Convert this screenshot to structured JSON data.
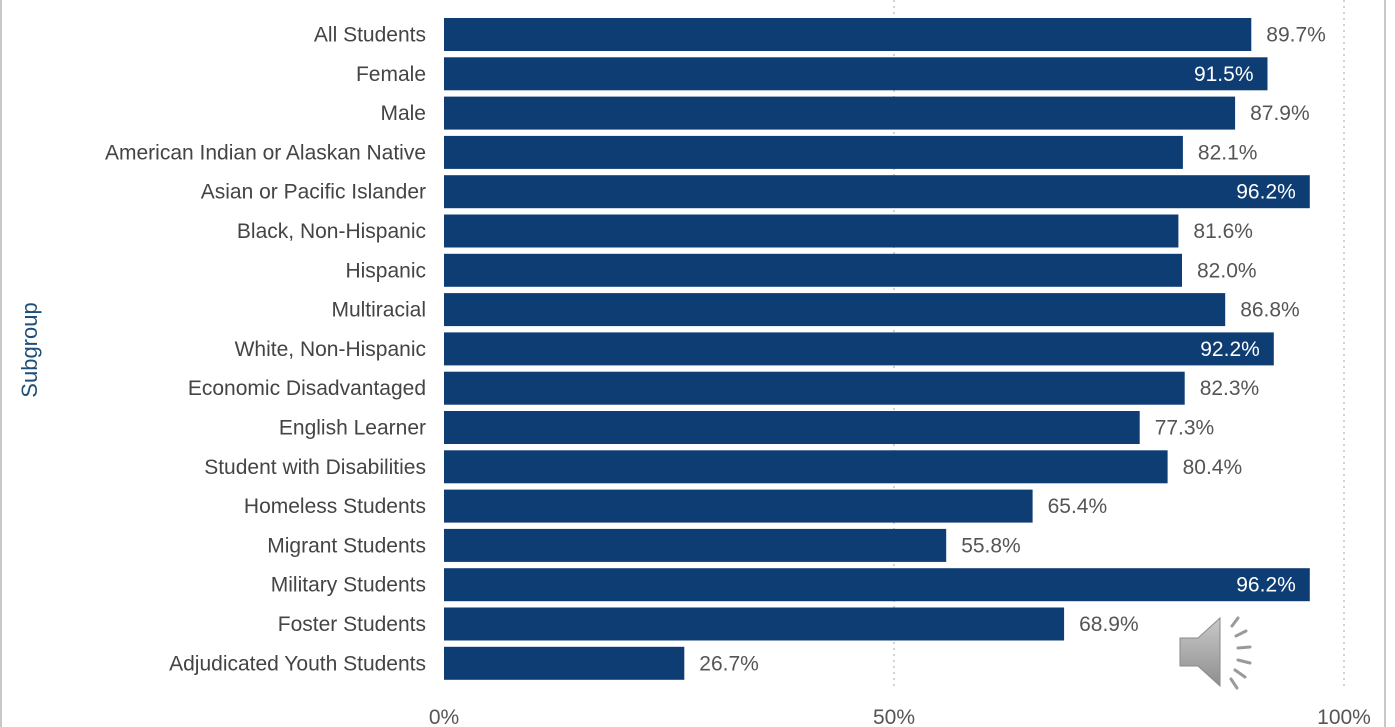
{
  "chart_data": {
    "type": "bar",
    "orientation": "horizontal",
    "ylabel": "Subgroup",
    "xlabel": "",
    "xlim": [
      0,
      100
    ],
    "x_ticks": [
      "0%",
      "50%",
      "100%"
    ],
    "grid": "vertical dotted at 50% and 100%",
    "categories": [
      "All Students",
      "Female",
      "Male",
      "American Indian or Alaskan Native",
      "Asian or Pacific Islander",
      "Black, Non-Hispanic",
      "Hispanic",
      "Multiracial",
      "White, Non-Hispanic",
      "Economic Disadvantaged",
      "English Learner",
      "Student with Disabilities",
      "Homeless Students",
      "Migrant Students",
      "Military Students",
      "Foster Students",
      "Adjudicated Youth Students"
    ],
    "values": [
      89.7,
      91.5,
      87.9,
      82.1,
      96.2,
      81.6,
      82.0,
      86.8,
      92.2,
      82.3,
      77.3,
      80.4,
      65.4,
      55.8,
      96.2,
      68.9,
      26.7
    ],
    "value_labels": [
      "89.7%",
      "91.5%",
      "87.9%",
      "82.1%",
      "96.2%",
      "81.6%",
      "82.0%",
      "86.8%",
      "92.2%",
      "82.3%",
      "77.3%",
      "80.4%",
      "65.4%",
      "55.8%",
      "96.2%",
      "68.9%",
      "26.7%"
    ],
    "labels_inside": [
      false,
      true,
      false,
      false,
      true,
      false,
      false,
      false,
      true,
      false,
      false,
      false,
      false,
      false,
      true,
      false,
      false
    ],
    "bar_color": "#0e3d73",
    "label_color_outside": "#555555",
    "label_color_inside": "#ffffff"
  },
  "overlay": {
    "speaker_icon": "speaker-audio-icon"
  }
}
